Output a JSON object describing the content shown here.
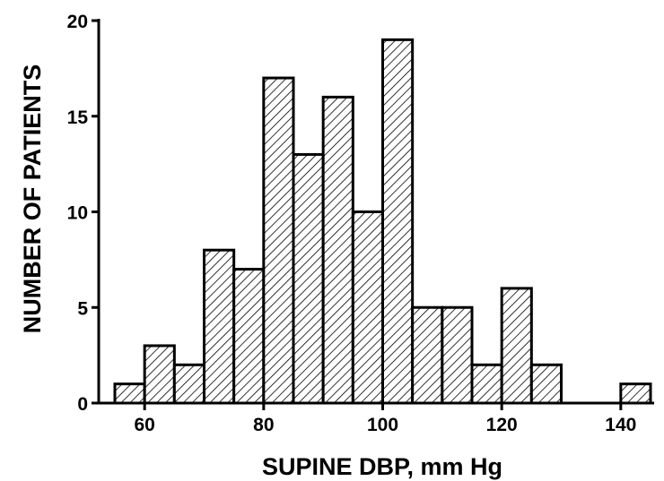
{
  "chart_data": {
    "type": "bar",
    "xlabel": "SUPINE DBP, mm Hg",
    "ylabel": "NUMBER OF PATIENTS",
    "ylim": [
      0,
      20
    ],
    "xlim": [
      55,
      145
    ],
    "bin_width": 5,
    "x_ticks": [
      60,
      80,
      100,
      120,
      140
    ],
    "y_ticks": [
      0,
      5,
      10,
      15,
      20
    ],
    "grid": false,
    "fill_pattern": "diagonal-hatch",
    "bins": [
      {
        "start": 55,
        "value": 1
      },
      {
        "start": 60,
        "value": 3
      },
      {
        "start": 65,
        "value": 2
      },
      {
        "start": 70,
        "value": 8
      },
      {
        "start": 75,
        "value": 7
      },
      {
        "start": 80,
        "value": 17
      },
      {
        "start": 85,
        "value": 13
      },
      {
        "start": 90,
        "value": 16
      },
      {
        "start": 95,
        "value": 10
      },
      {
        "start": 100,
        "value": 19
      },
      {
        "start": 105,
        "value": 5
      },
      {
        "start": 110,
        "value": 5
      },
      {
        "start": 115,
        "value": 2
      },
      {
        "start": 120,
        "value": 6
      },
      {
        "start": 125,
        "value": 2
      },
      {
        "start": 140,
        "value": 1
      }
    ]
  }
}
